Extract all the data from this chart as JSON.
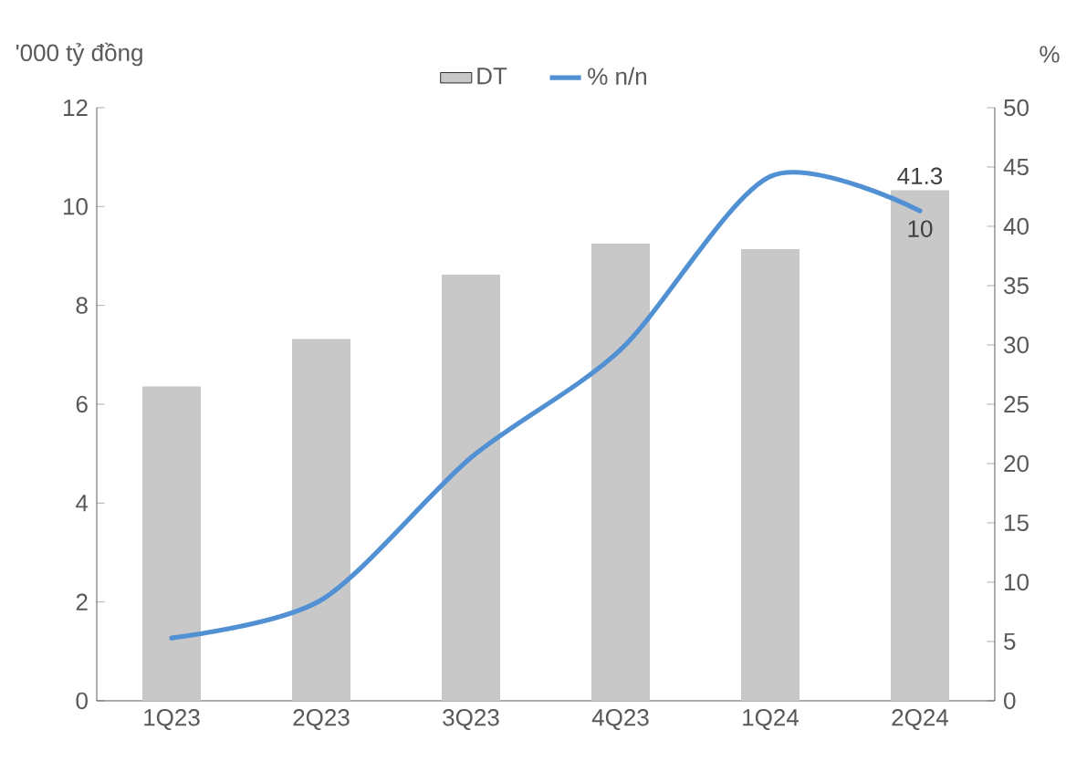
{
  "chart_data": {
    "type": "bar",
    "ylabel": "'000 tỷ đồng",
    "y2label": "%",
    "categories": [
      "1Q23",
      "2Q23",
      "3Q23",
      "4Q23",
      "1Q24",
      "2Q24"
    ],
    "series": [
      {
        "name": "DT",
        "color": "#c8c8c8",
        "values": [
          6.36,
          7.32,
          8.62,
          9.25,
          9.14,
          10.33
        ],
        "value_labels": [
          null,
          null,
          null,
          null,
          null,
          "10"
        ]
      },
      {
        "name": "% n/n",
        "type": "line",
        "axis": "y2",
        "color": "#5090d3",
        "values": [
          5.3,
          8.5,
          20.5,
          29.6,
          44.2,
          41.3
        ],
        "value_labels": [
          null,
          null,
          null,
          null,
          null,
          "41.3"
        ]
      }
    ],
    "ylim": [
      0,
      12
    ],
    "yticks": [
      0,
      2,
      4,
      6,
      8,
      10,
      12
    ],
    "y2lim": [
      0,
      50
    ],
    "y2ticks": [
      0,
      5,
      10,
      15,
      20,
      25,
      30,
      35,
      40,
      45,
      50
    ],
    "legend": "top"
  }
}
